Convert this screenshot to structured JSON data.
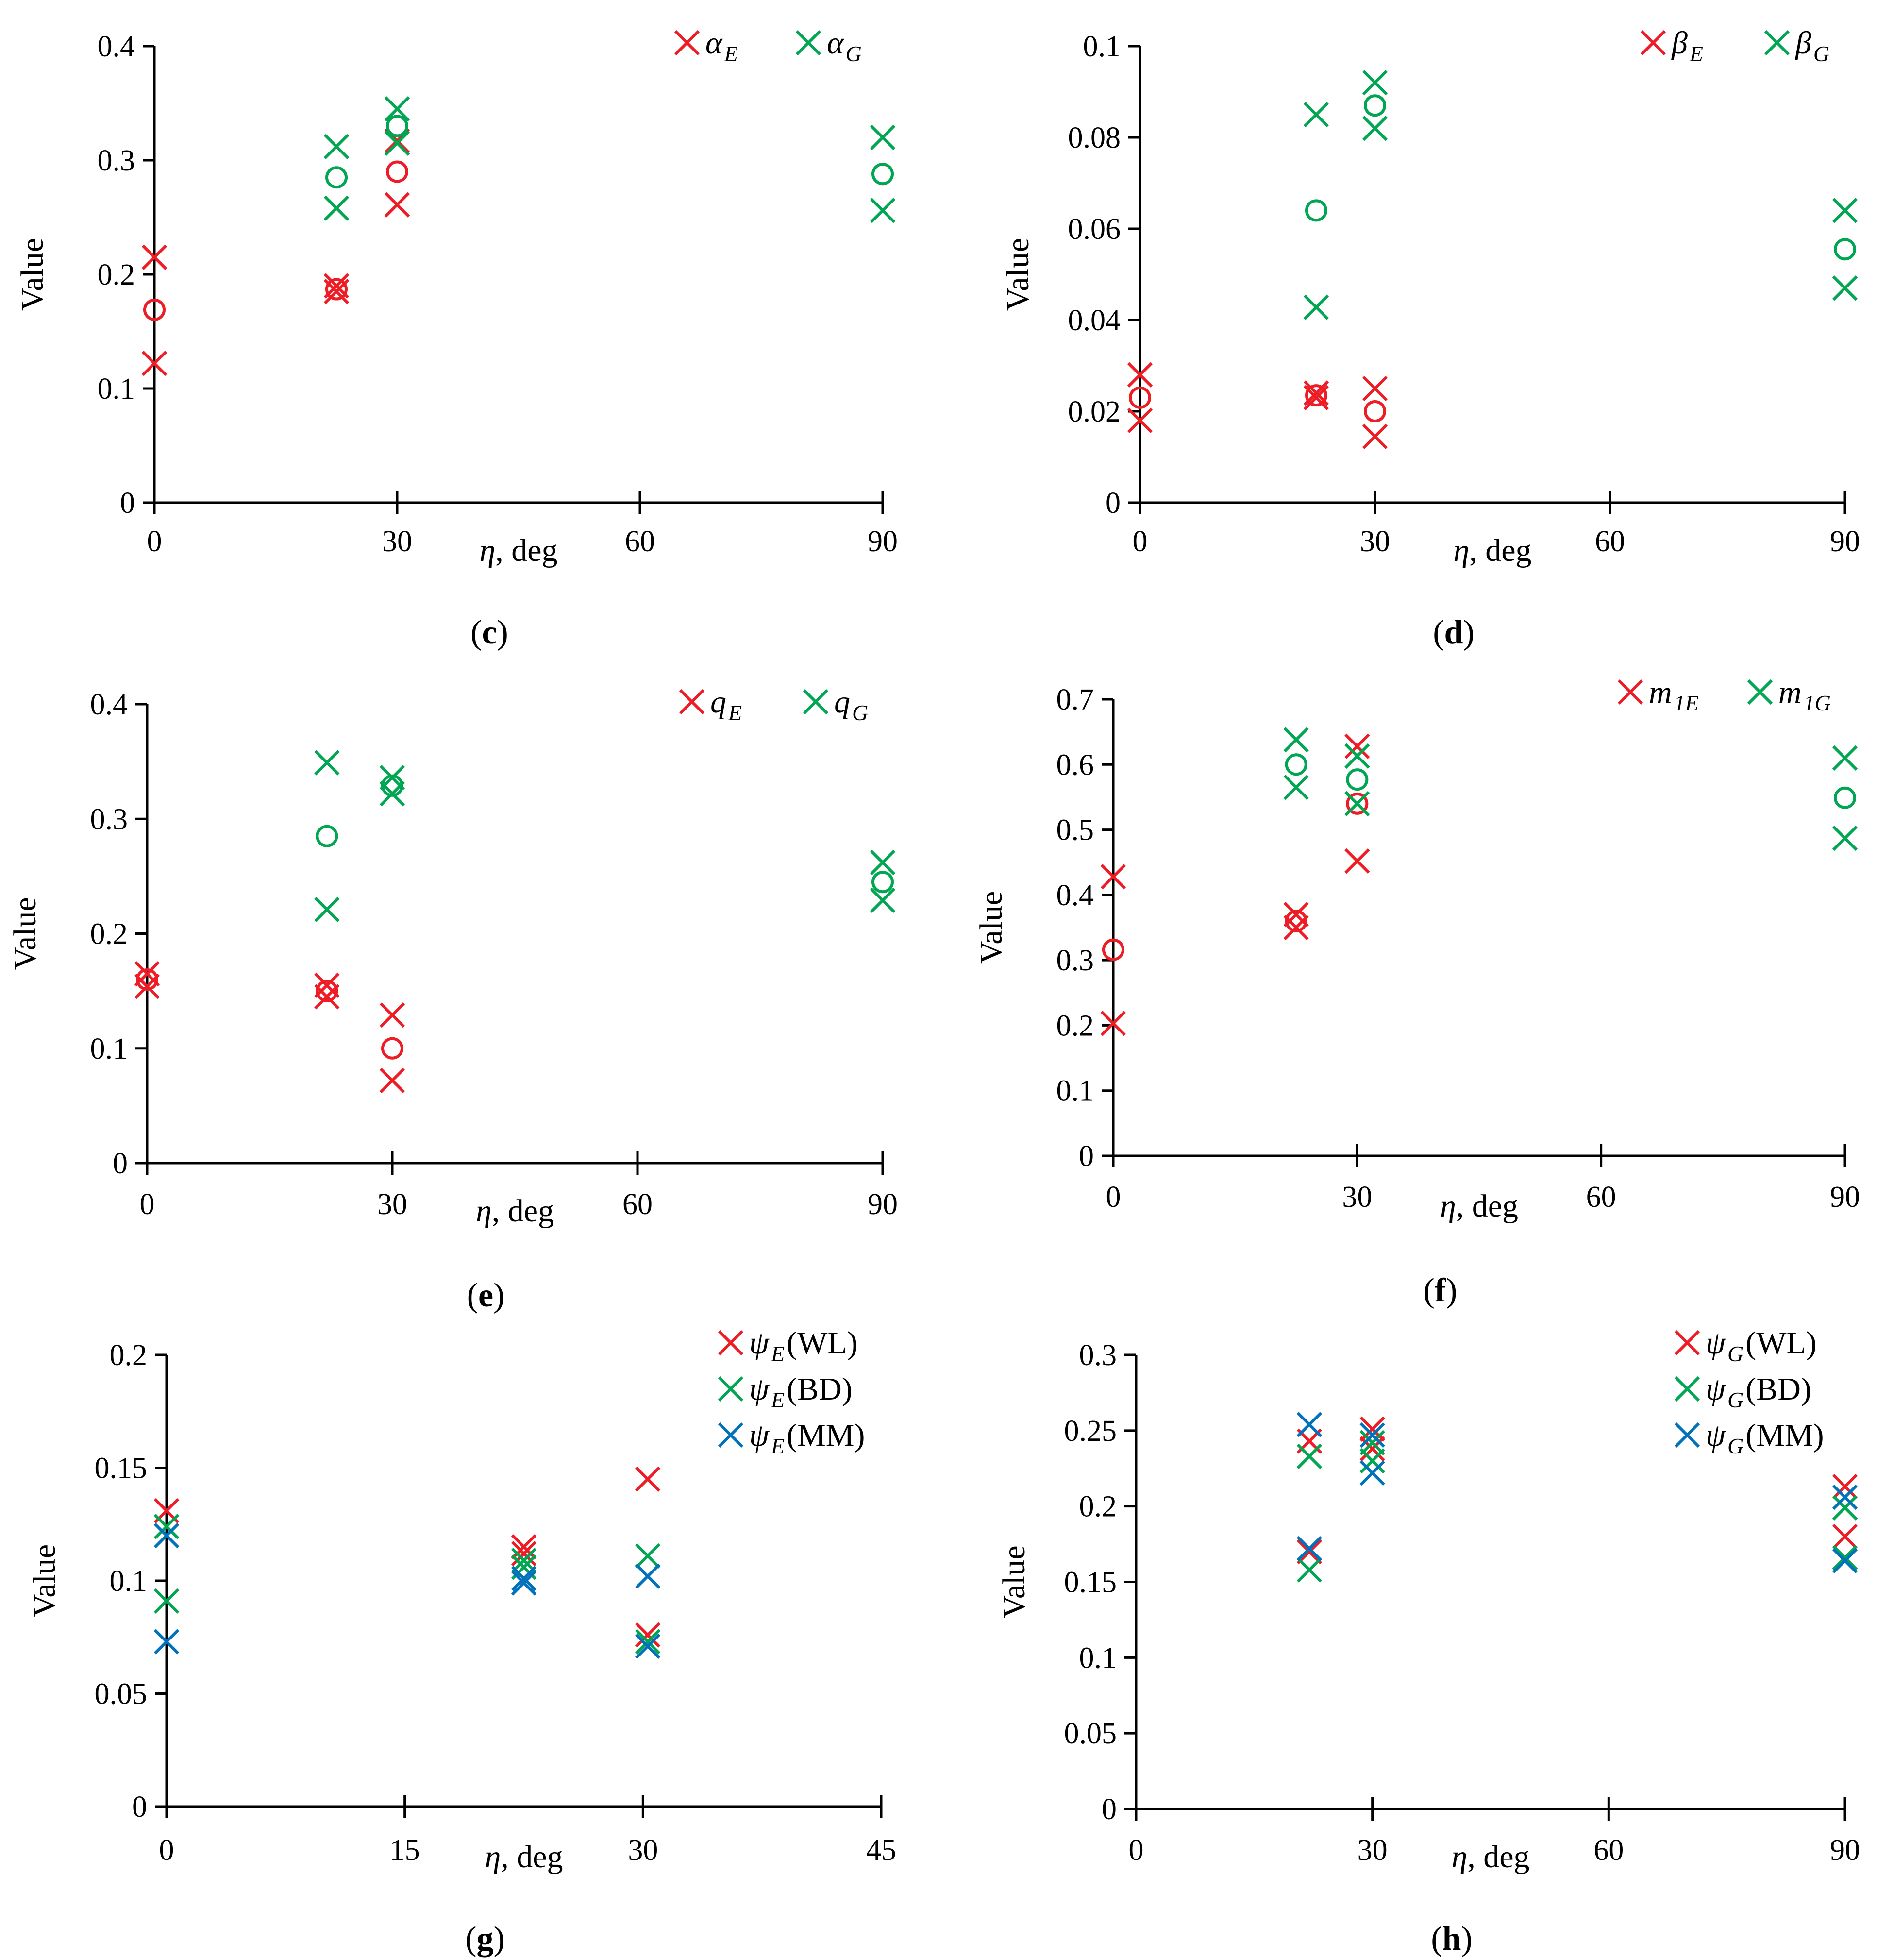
{
  "colors": {
    "red": "#ee1c25",
    "green": "#00a651",
    "blue": "#0072bc",
    "axis": "#000000"
  },
  "panels": [
    {
      "id": "c",
      "panel_label": "c",
      "ylabel": "Value",
      "xlabel": "η, deg",
      "xlabel_var": "η",
      "xlabel_unit": ", deg",
      "ylim": [
        0,
        0.4
      ],
      "yticks": [
        0,
        0.1,
        0.2,
        0.3,
        0.4
      ],
      "yticklabels": [
        "0",
        "0.1",
        "0.2",
        "0.3",
        "0.4"
      ],
      "xlim": [
        0,
        90
      ],
      "xticks": [
        0,
        30,
        60,
        90
      ],
      "xticklabels": [
        "0",
        "30",
        "60",
        "90"
      ],
      "legend": [
        {
          "symbol": "α",
          "sub": "E",
          "color": "red"
        },
        {
          "symbol": "α",
          "sub": "G",
          "color": "green"
        }
      ],
      "series": [
        {
          "name": "α_E",
          "color": "red",
          "marker": "x",
          "points": [
            [
              0,
              0.215
            ],
            [
              0,
              0.122
            ],
            [
              22.5,
              0.19
            ],
            [
              22.5,
              0.185
            ],
            [
              30,
              0.317
            ],
            [
              30,
              0.261
            ]
          ]
        },
        {
          "name": "α_E mean",
          "color": "red",
          "marker": "o",
          "points": [
            [
              0,
              0.169
            ],
            [
              22.5,
              0.187
            ],
            [
              30,
              0.29
            ]
          ]
        },
        {
          "name": "α_G",
          "color": "green",
          "marker": "x",
          "points": [
            [
              22.5,
              0.312
            ],
            [
              22.5,
              0.258
            ],
            [
              30,
              0.345
            ],
            [
              30,
              0.315
            ],
            [
              90,
              0.32
            ],
            [
              90,
              0.256
            ]
          ]
        },
        {
          "name": "α_G mean",
          "color": "green",
          "marker": "o",
          "points": [
            [
              22.5,
              0.285
            ],
            [
              30,
              0.33
            ],
            [
              90,
              0.288
            ]
          ]
        }
      ]
    },
    {
      "id": "d",
      "panel_label": "d",
      "ylabel": "Value",
      "xlabel": "η, deg",
      "xlabel_var": "η",
      "xlabel_unit": ", deg",
      "ylim": [
        0,
        0.1
      ],
      "yticks": [
        0,
        0.02,
        0.04,
        0.06,
        0.08,
        0.1
      ],
      "yticklabels": [
        "0",
        "0.02",
        "0.04",
        "0.06",
        "0.08",
        "0.1"
      ],
      "xlim": [
        0,
        90
      ],
      "xticks": [
        0,
        30,
        60,
        90
      ],
      "xticklabels": [
        "0",
        "30",
        "60",
        "90"
      ],
      "legend": [
        {
          "symbol": "β",
          "sub": "E",
          "color": "red"
        },
        {
          "symbol": "β",
          "sub": "G",
          "color": "green"
        }
      ],
      "series": [
        {
          "name": "β_E",
          "color": "red",
          "marker": "x",
          "points": [
            [
              0,
              0.028
            ],
            [
              0,
              0.018
            ],
            [
              22.5,
              0.024
            ],
            [
              22.5,
              0.023
            ],
            [
              30,
              0.025
            ],
            [
              30,
              0.0145
            ]
          ]
        },
        {
          "name": "β_E mean",
          "color": "red",
          "marker": "o",
          "points": [
            [
              0,
              0.023
            ],
            [
              22.5,
              0.0235
            ],
            [
              30,
              0.02
            ]
          ]
        },
        {
          "name": "β_G",
          "color": "green",
          "marker": "x",
          "points": [
            [
              22.5,
              0.085
            ],
            [
              22.5,
              0.0428
            ],
            [
              30,
              0.092
            ],
            [
              30,
              0.082
            ],
            [
              90,
              0.064
            ],
            [
              90,
              0.047
            ]
          ]
        },
        {
          "name": "β_G mean",
          "color": "green",
          "marker": "o",
          "points": [
            [
              22.5,
              0.064
            ],
            [
              30,
              0.087
            ],
            [
              90,
              0.0555
            ]
          ]
        }
      ]
    },
    {
      "id": "e",
      "panel_label": "e",
      "ylabel": "Value",
      "xlabel": "η, deg",
      "xlabel_var": "η",
      "xlabel_unit": ", deg",
      "ylim": [
        0,
        0.4
      ],
      "yticks": [
        0,
        0.1,
        0.2,
        0.3,
        0.4
      ],
      "yticklabels": [
        "0",
        "0.1",
        "0.2",
        "0.3",
        "0.4"
      ],
      "xlim": [
        0,
        90
      ],
      "xticks": [
        0,
        30,
        60,
        90
      ],
      "xticklabels": [
        "0",
        "30",
        "60",
        "90"
      ],
      "legend": [
        {
          "symbol": "q",
          "sub": "E",
          "color": "red"
        },
        {
          "symbol": "q",
          "sub": "G",
          "color": "green"
        }
      ],
      "series": [
        {
          "name": "q_E",
          "color": "red",
          "marker": "x",
          "points": [
            [
              0,
              0.165
            ],
            [
              0,
              0.154
            ],
            [
              22,
              0.155
            ],
            [
              22,
              0.145
            ],
            [
              30,
              0.129
            ],
            [
              30,
              0.072
            ]
          ]
        },
        {
          "name": "q_E mean",
          "color": "red",
          "marker": "o",
          "points": [
            [
              0,
              0.16
            ],
            [
              22,
              0.15
            ],
            [
              30,
              0.1
            ]
          ]
        },
        {
          "name": "q_G",
          "color": "green",
          "marker": "x",
          "points": [
            [
              22,
              0.349
            ],
            [
              22,
              0.221
            ],
            [
              30,
              0.336
            ],
            [
              30,
              0.322
            ],
            [
              90,
              0.262
            ],
            [
              90,
              0.229
            ]
          ]
        },
        {
          "name": "q_G mean",
          "color": "green",
          "marker": "o",
          "points": [
            [
              22,
              0.285
            ],
            [
              30,
              0.329
            ],
            [
              90,
              0.245
            ]
          ]
        }
      ]
    },
    {
      "id": "f",
      "panel_label": "f",
      "ylabel": "Value",
      "xlabel": "η, deg",
      "xlabel_var": "η",
      "xlabel_unit": ", deg",
      "ylim": [
        0,
        0.7
      ],
      "yticks": [
        0,
        0.1,
        0.2,
        0.3,
        0.4,
        0.5,
        0.6,
        0.7
      ],
      "yticklabels": [
        "0",
        "0.1",
        "0.2",
        "0.3",
        "0.4",
        "0.5",
        "0.6",
        "0.7"
      ],
      "xlim": [
        0,
        90
      ],
      "xticks": [
        0,
        30,
        60,
        90
      ],
      "xticklabels": [
        "0",
        "30",
        "60",
        "90"
      ],
      "legend": [
        {
          "symbol": "m",
          "sub": "1E",
          "color": "red"
        },
        {
          "symbol": "m",
          "sub": "1G",
          "color": "green"
        }
      ],
      "series": [
        {
          "name": "m_1E",
          "color": "red",
          "marker": "x",
          "points": [
            [
              0,
              0.428
            ],
            [
              0,
              0.203
            ],
            [
              22.5,
              0.37
            ],
            [
              22.5,
              0.35
            ],
            [
              30,
              0.628
            ],
            [
              30,
              0.452
            ]
          ]
        },
        {
          "name": "m_1E mean",
          "color": "red",
          "marker": "o",
          "points": [
            [
              0,
              0.316
            ],
            [
              22.5,
              0.36
            ],
            [
              30,
              0.54
            ]
          ]
        },
        {
          "name": "m_1G",
          "color": "green",
          "marker": "x",
          "points": [
            [
              22.5,
              0.638
            ],
            [
              22.5,
              0.565
            ],
            [
              30,
              0.613
            ],
            [
              30,
              0.54
            ],
            [
              90,
              0.61
            ],
            [
              90,
              0.487
            ]
          ]
        },
        {
          "name": "m_1G mean",
          "color": "green",
          "marker": "o",
          "points": [
            [
              22.5,
              0.6
            ],
            [
              30,
              0.577
            ],
            [
              90,
              0.549
            ]
          ]
        }
      ]
    },
    {
      "id": "g",
      "panel_label": "g",
      "ylabel": "Value",
      "xlabel": "η, deg",
      "xlabel_var": "η",
      "xlabel_unit": ", deg",
      "ylim": [
        0,
        0.2
      ],
      "yticks": [
        0,
        0.05,
        0.1,
        0.15,
        0.2
      ],
      "yticklabels": [
        "0",
        "0.05",
        "0.1",
        "0.15",
        "0.2"
      ],
      "xlim": [
        0,
        45
      ],
      "xticks": [
        0,
        15,
        30,
        45
      ],
      "xticklabels": [
        "0",
        "15",
        "30",
        "45"
      ],
      "legend": [
        {
          "symbol": "ψ",
          "sub": "E",
          "suffix": "(WL)",
          "color": "red"
        },
        {
          "symbol": "ψ",
          "sub": "E",
          "suffix": "(BD)",
          "color": "green"
        },
        {
          "symbol": "ψ",
          "sub": "E",
          "suffix": "(MM)",
          "color": "blue"
        }
      ],
      "series": [
        {
          "name": "ψ_E(WL)",
          "color": "red",
          "marker": "x",
          "points": [
            [
              0,
              0.131
            ],
            [
              0,
              0.091
            ],
            [
              22.5,
              0.115
            ],
            [
              22.5,
              0.112
            ],
            [
              30.3,
              0.145
            ],
            [
              30.3,
              0.076
            ]
          ]
        },
        {
          "name": "ψ_E(BD)",
          "color": "green",
          "marker": "x",
          "points": [
            [
              0,
              0.124
            ],
            [
              0,
              0.091
            ],
            [
              22.5,
              0.109
            ],
            [
              22.5,
              0.106
            ],
            [
              30.3,
              0.111
            ],
            [
              30.3,
              0.073
            ]
          ]
        },
        {
          "name": "ψ_E(MM)",
          "color": "blue",
          "marker": "x",
          "points": [
            [
              0,
              0.12
            ],
            [
              0,
              0.073
            ],
            [
              22.5,
              0.101
            ],
            [
              22.5,
              0.099
            ],
            [
              30.3,
              0.102
            ],
            [
              30.3,
              0.071
            ]
          ]
        }
      ]
    },
    {
      "id": "h",
      "panel_label": "h",
      "ylabel": "Value",
      "xlabel": "η, deg",
      "xlabel_var": "η",
      "xlabel_unit": ", deg",
      "ylim": [
        0,
        0.3
      ],
      "yticks": [
        0,
        0.05,
        0.1,
        0.15,
        0.2,
        0.25,
        0.3
      ],
      "yticklabels": [
        "0",
        "0.05",
        "0.1",
        "0.15",
        "0.2",
        "0.25",
        "0.3"
      ],
      "xlim": [
        0,
        90
      ],
      "xticks": [
        0,
        30,
        60,
        90
      ],
      "xticklabels": [
        "0",
        "30",
        "60",
        "90"
      ],
      "legend": [
        {
          "symbol": "ψ",
          "sub": "G",
          "suffix": "(WL)",
          "color": "red"
        },
        {
          "symbol": "ψ",
          "sub": "G",
          "suffix": "(BD)",
          "color": "green"
        },
        {
          "symbol": "ψ",
          "sub": "G",
          "suffix": "(MM)",
          "color": "blue"
        }
      ],
      "series": [
        {
          "name": "ψ_G(WL)",
          "color": "red",
          "marker": "x",
          "points": [
            [
              22,
              0.243
            ],
            [
              22,
              0.17
            ],
            [
              30,
              0.251
            ],
            [
              30,
              0.238
            ],
            [
              90,
              0.213
            ],
            [
              90,
              0.18
            ]
          ]
        },
        {
          "name": "ψ_G(BD)",
          "color": "green",
          "marker": "x",
          "points": [
            [
              22,
              0.233
            ],
            [
              22,
              0.158
            ],
            [
              30,
              0.242
            ],
            [
              30,
              0.23
            ],
            [
              90,
              0.199
            ],
            [
              90,
              0.166
            ]
          ]
        },
        {
          "name": "ψ_G(MM)",
          "color": "blue",
          "marker": "x",
          "points": [
            [
              22,
              0.254
            ],
            [
              22,
              0.172
            ],
            [
              30,
              0.247
            ],
            [
              30,
              0.222
            ],
            [
              90,
              0.206
            ],
            [
              90,
              0.164
            ]
          ]
        }
      ]
    }
  ],
  "chart_data": [
    {
      "type": "scatter",
      "panel": "c",
      "ylabel": "Value",
      "xlabel": "η, deg",
      "xlim": [
        0,
        90
      ],
      "ylim": [
        0,
        0.4
      ],
      "legend": [
        "α_E",
        "α_G"
      ]
    },
    {
      "type": "scatter",
      "panel": "d",
      "ylabel": "Value",
      "xlabel": "η, deg",
      "xlim": [
        0,
        90
      ],
      "ylim": [
        0,
        0.1
      ],
      "legend": [
        "β_E",
        "β_G"
      ]
    },
    {
      "type": "scatter",
      "panel": "e",
      "ylabel": "Value",
      "xlabel": "η, deg",
      "xlim": [
        0,
        90
      ],
      "ylim": [
        0,
        0.4
      ],
      "legend": [
        "q_E",
        "q_G"
      ]
    },
    {
      "type": "scatter",
      "panel": "f",
      "ylabel": "Value",
      "xlabel": "η, deg",
      "xlim": [
        0,
        90
      ],
      "ylim": [
        0,
        0.7
      ],
      "legend": [
        "m_1E",
        "m_1G"
      ]
    },
    {
      "type": "scatter",
      "panel": "g",
      "ylabel": "Value",
      "xlabel": "η, deg",
      "xlim": [
        0,
        45
      ],
      "ylim": [
        0,
        0.2
      ],
      "legend": [
        "ψ_E(WL)",
        "ψ_E(BD)",
        "ψ_E(MM)"
      ]
    },
    {
      "type": "scatter",
      "panel": "h",
      "ylabel": "Value",
      "xlabel": "η, deg",
      "xlim": [
        0,
        90
      ],
      "ylim": [
        0,
        0.3
      ],
      "legend": [
        "ψ_G(WL)",
        "ψ_G(BD)",
        "ψ_G(MM)"
      ]
    }
  ]
}
